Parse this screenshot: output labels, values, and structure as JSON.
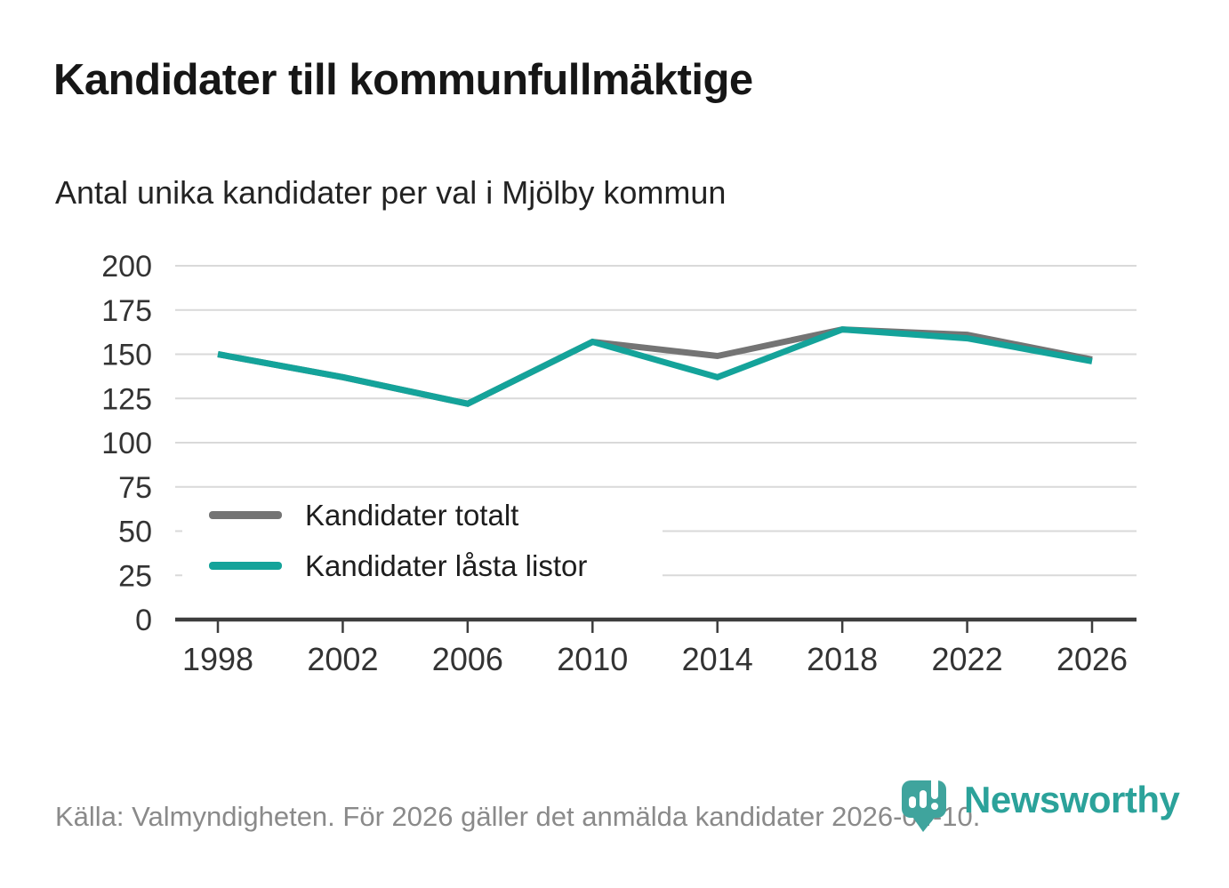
{
  "header": {
    "title": "Kandidater till kommunfullmäktige",
    "subtitle": "Antal unika kandidater per val i Mjölby kommun"
  },
  "chart_data": {
    "type": "line",
    "title": "Kandidater till kommunfullmäktige",
    "subtitle": "Antal unika kandidater per val i Mjölby kommun",
    "x": [
      "1998",
      "2002",
      "2006",
      "2010",
      "2014",
      "2018",
      "2022",
      "2026"
    ],
    "series": [
      {
        "name": "Kandidater totalt",
        "color": "#747474",
        "values": [
          150,
          137,
          122,
          157,
          149,
          164,
          161,
          147
        ]
      },
      {
        "name": "Kandidater låsta listor",
        "color": "#14a39a",
        "values": [
          150,
          137,
          122,
          157,
          137,
          164,
          159,
          146
        ]
      }
    ],
    "xlabel": "",
    "ylabel": "",
    "ylim": [
      0,
      200
    ],
    "ytick_step": 25,
    "yticks": [
      0,
      25,
      50,
      75,
      100,
      125,
      150,
      175,
      200
    ],
    "grid": "horizontal",
    "legend_position": "inside-bottom-left"
  },
  "footer": {
    "source": "Källa: Valmyndigheten. För 2026 gäller det anmälda kandidater 2026-04-10.",
    "logo_text": "Newsworthy"
  },
  "colors": {
    "accent_teal": "#14a39a",
    "series_gray": "#747474",
    "logo_teal": "#3fa49d",
    "axis_dark": "#3d3d3d",
    "gridline": "#d9d9d9"
  }
}
